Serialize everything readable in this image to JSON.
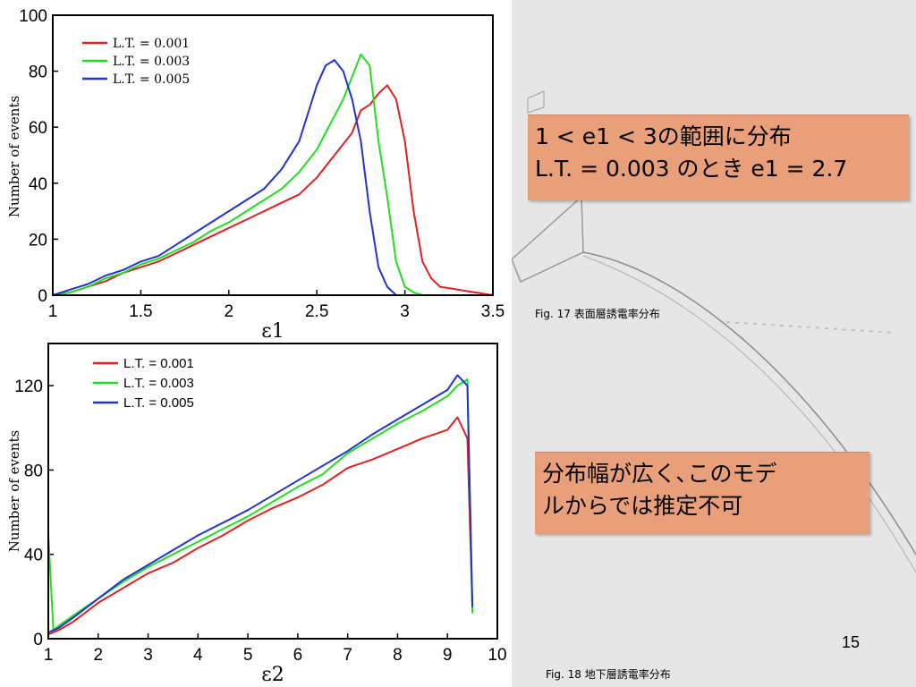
{
  "chart_data": [
    {
      "type": "line",
      "title": "",
      "xlabel": "ε1",
      "ylabel": "Number of events",
      "xlim": [
        1,
        3.5
      ],
      "ylim": [
        0,
        100
      ],
      "xticks": [
        "1",
        "1.5",
        "2",
        "2.5",
        "3",
        "3.5"
      ],
      "yticks": [
        "0",
        "20",
        "40",
        "60",
        "80",
        "100"
      ],
      "grid": false,
      "legend_position": "top-left",
      "series": [
        {
          "name": "L.T. = 0.001",
          "color": "#dd2222",
          "x": [
            1.0,
            1.1,
            1.2,
            1.3,
            1.4,
            1.5,
            1.6,
            1.7,
            1.8,
            1.9,
            2.0,
            2.1,
            2.2,
            2.3,
            2.4,
            2.5,
            2.6,
            2.7,
            2.75,
            2.8,
            2.85,
            2.9,
            2.95,
            3.0,
            3.05,
            3.1,
            3.15,
            3.2,
            3.3,
            3.4,
            3.5
          ],
          "values": [
            0,
            1,
            3,
            5,
            8,
            10,
            12,
            15,
            18,
            21,
            24,
            27,
            30,
            33,
            36,
            42,
            50,
            58,
            66,
            68,
            72,
            75,
            70,
            55,
            30,
            12,
            6,
            3,
            2,
            1,
            0
          ]
        },
        {
          "name": "L.T. = 0.003",
          "color": "#22dd22",
          "x": [
            1.0,
            1.1,
            1.2,
            1.3,
            1.4,
            1.5,
            1.6,
            1.7,
            1.8,
            1.9,
            2.0,
            2.1,
            2.2,
            2.3,
            2.4,
            2.5,
            2.55,
            2.6,
            2.65,
            2.7,
            2.75,
            2.8,
            2.85,
            2.9,
            2.95,
            3.0,
            3.05,
            3.1
          ],
          "values": [
            0,
            1,
            3,
            6,
            8,
            11,
            13,
            16,
            19,
            23,
            26,
            30,
            34,
            38,
            44,
            52,
            58,
            64,
            70,
            78,
            86,
            82,
            55,
            35,
            12,
            3,
            1,
            0
          ]
        },
        {
          "name": "L.T. = 0.005",
          "color": "#2233cc",
          "x": [
            1.0,
            1.1,
            1.2,
            1.3,
            1.4,
            1.5,
            1.6,
            1.7,
            1.8,
            1.9,
            2.0,
            2.1,
            2.2,
            2.3,
            2.4,
            2.45,
            2.5,
            2.55,
            2.6,
            2.65,
            2.7,
            2.75,
            2.8,
            2.85,
            2.9,
            2.95
          ],
          "values": [
            0,
            2,
            4,
            7,
            9,
            12,
            14,
            18,
            22,
            26,
            30,
            34,
            38,
            45,
            55,
            65,
            75,
            82,
            84,
            80,
            70,
            55,
            30,
            10,
            3,
            0
          ]
        }
      ]
    },
    {
      "type": "line",
      "title": "",
      "xlabel": "ε2",
      "ylabel": "Number of events",
      "xlim": [
        1,
        10
      ],
      "ylim": [
        0,
        140
      ],
      "xticks": [
        "1",
        "2",
        "3",
        "4",
        "5",
        "6",
        "7",
        "8",
        "9",
        "10"
      ],
      "yticks": [
        "0",
        "40",
        "80",
        "120"
      ],
      "grid": false,
      "legend_position": "top-left",
      "series": [
        {
          "name": "L.T. = 0.001",
          "color": "#dd2222",
          "x": [
            1.0,
            1.2,
            1.5,
            2.0,
            2.5,
            3.0,
            3.5,
            4.0,
            4.5,
            5.0,
            5.5,
            6.0,
            6.5,
            7.0,
            7.5,
            8.0,
            8.5,
            9.0,
            9.2,
            9.4,
            9.5
          ],
          "values": [
            2,
            4,
            8,
            17,
            24,
            31,
            36,
            43,
            49,
            56,
            62,
            67,
            73,
            81,
            85,
            90,
            95,
            99,
            105,
            95,
            15
          ]
        },
        {
          "name": "L.T. = 0.003",
          "color": "#22dd22",
          "x": [
            1.0,
            1.1,
            1.2,
            1.5,
            2.0,
            2.5,
            3.0,
            3.5,
            4.0,
            4.5,
            5.0,
            5.5,
            6.0,
            6.5,
            7.0,
            7.5,
            8.0,
            8.5,
            9.0,
            9.2,
            9.4,
            9.5
          ],
          "values": [
            50,
            4,
            6,
            11,
            19,
            27,
            34,
            40,
            46,
            52,
            58,
            65,
            72,
            78,
            88,
            95,
            102,
            108,
            115,
            120,
            123,
            12
          ]
        },
        {
          "name": "L.T. = 0.005",
          "color": "#2233cc",
          "x": [
            1.0,
            1.2,
            1.5,
            2.0,
            2.5,
            3.0,
            3.5,
            4.0,
            4.5,
            5.0,
            5.5,
            6.0,
            6.5,
            7.0,
            7.5,
            8.0,
            8.5,
            9.0,
            9.2,
            9.4,
            9.5
          ],
          "values": [
            3,
            5,
            10,
            19,
            28,
            35,
            42,
            49,
            55,
            61,
            68,
            75,
            82,
            89,
            97,
            104,
            111,
            118,
            125,
            120,
            15
          ]
        }
      ]
    }
  ],
  "callouts": {
    "box1_line1": "1 < e1 < 3の範囲に分布",
    "box1_line2": "L.T. = 0.003 のとき e1 = 2.7",
    "box2_line1": "分布幅が広く､このモデ",
    "box2_line2": "ルからでは推定不可"
  },
  "captions": {
    "fig17": "Fig. 17 表面層誘電率分布",
    "fig18": "Fig. 18 地下層誘電率分布"
  },
  "page_number": "15"
}
